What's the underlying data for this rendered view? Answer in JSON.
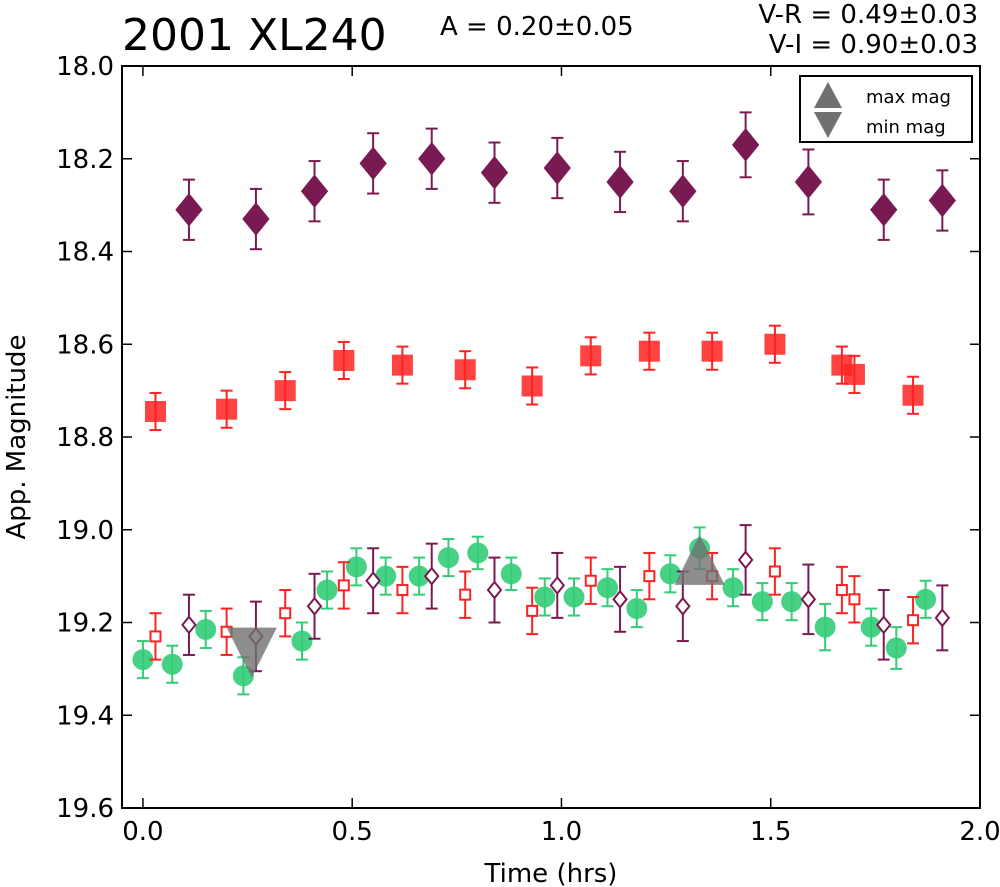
{
  "chart_data": {
    "type": "scatter",
    "title": "2001 XL240",
    "amplitude_text": "A  = 0.20±0.05",
    "color_vr_text": "V-R = 0.49±0.03",
    "color_vi_text": "V-I  = 0.90±0.03",
    "xlabel": "Time (hrs)",
    "ylabel": "App. Magnitude",
    "xlim": [
      -0.05,
      2.0
    ],
    "ylim": [
      19.6,
      18.0
    ],
    "y_inverted": true,
    "grid": false,
    "xticks": [
      "0.0",
      "0.5",
      "1.0",
      "1.5",
      "2.0"
    ],
    "yticks": [
      "18.0",
      "18.2",
      "18.4",
      "18.6",
      "18.8",
      "19.0",
      "19.2",
      "19.4",
      "19.6"
    ],
    "legend": {
      "placement": "top-right",
      "entries": [
        "max mag",
        "min mag"
      ]
    },
    "colors": {
      "V": "#33cc77",
      "R": "#ff2222",
      "I": "#7a1a52",
      "marker_gray": "#707070"
    },
    "series": [
      {
        "marker": "diamond-filled",
        "color": "#7a1a52",
        "points": [
          [
            0.11,
            18.31,
            0.065
          ],
          [
            0.27,
            18.33,
            0.065
          ],
          [
            0.41,
            18.27,
            0.065
          ],
          [
            0.55,
            18.21,
            0.065
          ],
          [
            0.69,
            18.2,
            0.065
          ],
          [
            0.84,
            18.23,
            0.065
          ],
          [
            0.99,
            18.22,
            0.065
          ],
          [
            1.14,
            18.25,
            0.065
          ],
          [
            1.29,
            18.27,
            0.065
          ],
          [
            1.44,
            18.17,
            0.07
          ],
          [
            1.59,
            18.25,
            0.07
          ],
          [
            1.77,
            18.31,
            0.065
          ],
          [
            1.91,
            18.29,
            0.065
          ]
        ]
      },
      {
        "marker": "square-filled",
        "color": "#ff2222",
        "points": [
          [
            0.03,
            18.745,
            0.04
          ],
          [
            0.2,
            18.74,
            0.04
          ],
          [
            0.34,
            18.7,
            0.04
          ],
          [
            0.48,
            18.635,
            0.04
          ],
          [
            0.62,
            18.645,
            0.04
          ],
          [
            0.77,
            18.655,
            0.04
          ],
          [
            0.93,
            18.69,
            0.04
          ],
          [
            1.07,
            18.625,
            0.04
          ],
          [
            1.21,
            18.615,
            0.04
          ],
          [
            1.36,
            18.615,
            0.04
          ],
          [
            1.51,
            18.6,
            0.04
          ],
          [
            1.67,
            18.645,
            0.04
          ],
          [
            1.7,
            18.665,
            0.04
          ],
          [
            1.84,
            18.71,
            0.04
          ]
        ]
      },
      {
        "marker": "circle-filled",
        "color": "#33cc77",
        "points": [
          [
            0.0,
            19.28,
            0.04
          ],
          [
            0.07,
            19.29,
            0.04
          ],
          [
            0.15,
            19.215,
            0.04
          ],
          [
            0.24,
            19.315,
            0.04
          ],
          [
            0.38,
            19.24,
            0.04
          ],
          [
            0.44,
            19.13,
            0.04
          ],
          [
            0.51,
            19.08,
            0.04
          ],
          [
            0.58,
            19.1,
            0.04
          ],
          [
            0.66,
            19.1,
            0.04
          ],
          [
            0.73,
            19.06,
            0.04
          ],
          [
            0.8,
            19.05,
            0.035
          ],
          [
            0.88,
            19.095,
            0.035
          ],
          [
            0.96,
            19.145,
            0.04
          ],
          [
            1.03,
            19.145,
            0.04
          ],
          [
            1.11,
            19.125,
            0.04
          ],
          [
            1.18,
            19.17,
            0.04
          ],
          [
            1.26,
            19.095,
            0.04
          ],
          [
            1.33,
            19.04,
            0.045
          ],
          [
            1.41,
            19.125,
            0.04
          ],
          [
            1.48,
            19.155,
            0.04
          ],
          [
            1.55,
            19.155,
            0.04
          ],
          [
            1.63,
            19.21,
            0.05
          ],
          [
            1.74,
            19.21,
            0.04
          ],
          [
            1.8,
            19.255,
            0.045
          ],
          [
            1.87,
            19.15,
            0.04
          ]
        ]
      },
      {
        "marker": "square-open",
        "color": "#ff2222",
        "points": [
          [
            0.03,
            19.23,
            0.05
          ],
          [
            0.2,
            19.22,
            0.05
          ],
          [
            0.34,
            19.18,
            0.05
          ],
          [
            0.48,
            19.12,
            0.05
          ],
          [
            0.62,
            19.13,
            0.05
          ],
          [
            0.77,
            19.14,
            0.05
          ],
          [
            0.93,
            19.175,
            0.05
          ],
          [
            1.07,
            19.11,
            0.05
          ],
          [
            1.21,
            19.1,
            0.05
          ],
          [
            1.36,
            19.1,
            0.05
          ],
          [
            1.51,
            19.09,
            0.05
          ],
          [
            1.67,
            19.13,
            0.05
          ],
          [
            1.7,
            19.15,
            0.05
          ],
          [
            1.84,
            19.195,
            0.05
          ]
        ]
      },
      {
        "marker": "diamond-open",
        "color": "#7a1a52",
        "points": [
          [
            0.11,
            19.205,
            0.065
          ],
          [
            0.27,
            19.23,
            0.075
          ],
          [
            0.41,
            19.165,
            0.07
          ],
          [
            0.55,
            19.11,
            0.07
          ],
          [
            0.69,
            19.1,
            0.07
          ],
          [
            0.84,
            19.13,
            0.07
          ],
          [
            0.99,
            19.12,
            0.07
          ],
          [
            1.14,
            19.15,
            0.07
          ],
          [
            1.29,
            19.165,
            0.075
          ],
          [
            1.44,
            19.065,
            0.075
          ],
          [
            1.59,
            19.15,
            0.075
          ],
          [
            1.77,
            19.205,
            0.075
          ],
          [
            1.91,
            19.19,
            0.07
          ]
        ]
      }
    ],
    "extrema": [
      {
        "label": "max mag",
        "x": 1.33,
        "y": 19.065
      },
      {
        "label": "min mag",
        "x": 0.26,
        "y": 19.265
      }
    ]
  }
}
